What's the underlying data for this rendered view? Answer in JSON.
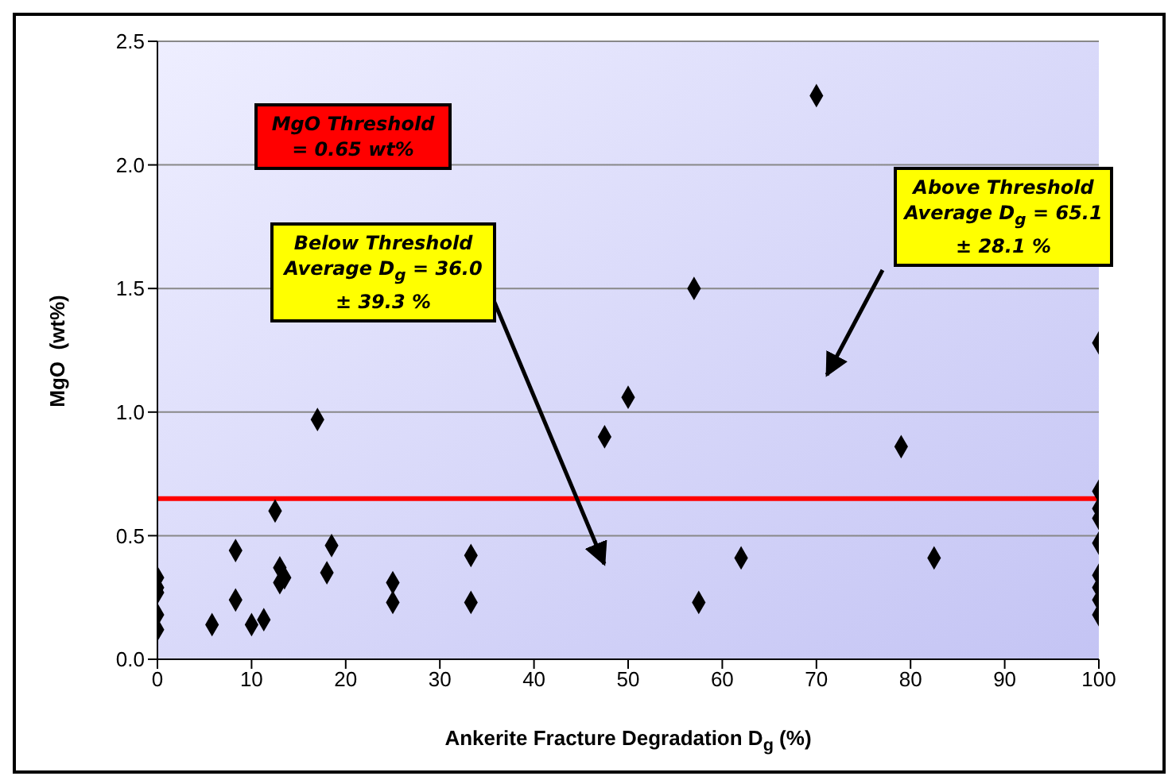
{
  "chart_data": {
    "type": "scatter",
    "xlabel": "Ankerite Fracture Degradation D$_{g}$ (%)",
    "ylabel": "MgO  (wt%)",
    "x": [
      0,
      0,
      0,
      0,
      0,
      5.8,
      8.3,
      8.3,
      10,
      11.3,
      12.5,
      13,
      13,
      13.5,
      17,
      18,
      18.5,
      25,
      25,
      33.3,
      33.3,
      47.5,
      50,
      57,
      57.5,
      62,
      70,
      79,
      82.5,
      100,
      100,
      100,
      100,
      100,
      100,
      100,
      100,
      100
    ],
    "series": [
      {
        "color": "#000000",
        "values": [
          0.33,
          0.29,
          0.27,
          0.18,
          0.12,
          0.14,
          0.44,
          0.24,
          0.14,
          0.16,
          0.6,
          0.31,
          0.37,
          0.33,
          0.97,
          0.35,
          0.46,
          0.31,
          0.23,
          0.42,
          0.23,
          0.9,
          1.06,
          1.5,
          0.23,
          0.41,
          2.28,
          0.86,
          0.41,
          1.28,
          0.68,
          0.61,
          0.57,
          0.47,
          0.34,
          0.29,
          0.24,
          0.18
        ]
      }
    ],
    "marker": "diamond",
    "xlim": [
      0,
      100
    ],
    "xticks": [
      0,
      10,
      20,
      30,
      40,
      50,
      60,
      70,
      80,
      90,
      100
    ],
    "ylim": [
      0,
      2.5
    ],
    "yticks": [
      {
        "value": 0,
        "label": "0.0"
      },
      {
        "value": 0.5,
        "label": "0.5"
      },
      {
        "value": 1,
        "label": "1.0"
      },
      {
        "value": 1.5,
        "label": "1.5"
      },
      {
        "value": 2,
        "label": "2.0"
      },
      {
        "value": 2.5,
        "label": "2.5"
      }
    ],
    "grid": "y",
    "ref_lines": [
      {
        "axis": "y",
        "value": 0.65,
        "color": "#ff0000"
      }
    ],
    "annotations": [
      "MgO Threshold = 0.65 wt%",
      "Below Threshold Average D$_{g}$ = 36.0 ± 39.3 %",
      "Above Threshold Average D$_{g}$ = 65.1 ± 28.1 %"
    ]
  }
}
